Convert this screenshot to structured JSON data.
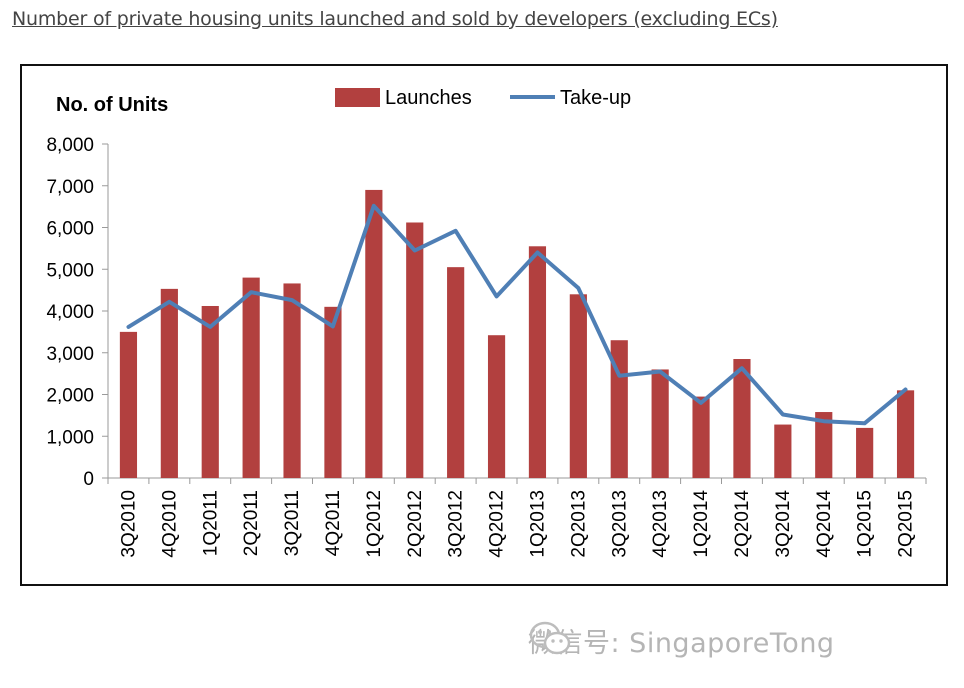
{
  "caption": "Number of private housing units launched and sold by developers (excluding ECs)",
  "watermark": "微信号: SingaporeTong",
  "chart_data": {
    "type": "bar+line",
    "title": "",
    "ylabel": "No. of Units",
    "xlabel": "",
    "ylim": [
      0,
      8000
    ],
    "yticks": [
      0,
      1000,
      2000,
      3000,
      4000,
      5000,
      6000,
      7000,
      8000
    ],
    "ytick_labels": [
      "0",
      "1,000",
      "2,000",
      "3,000",
      "4,000",
      "5,000",
      "6,000",
      "7,000",
      "8,000"
    ],
    "grid": false,
    "legend_position": "top-center",
    "categories": [
      "3Q2010",
      "4Q2010",
      "1Q2011",
      "2Q2011",
      "3Q2011",
      "4Q2011",
      "1Q2012",
      "2Q2012",
      "3Q2012",
      "4Q2012",
      "1Q2013",
      "2Q2013",
      "3Q2013",
      "4Q2013",
      "1Q2014",
      "2Q2014",
      "3Q2014",
      "4Q2014",
      "1Q2015",
      "2Q2015"
    ],
    "series": [
      {
        "name": "Launches",
        "type": "bar",
        "color": "#b2403f",
        "values": [
          3500,
          4530,
          4120,
          4800,
          4660,
          4100,
          6900,
          6120,
          5050,
          3420,
          5550,
          4400,
          3300,
          2600,
          1950,
          2850,
          1280,
          1580,
          1200,
          2100
        ]
      },
      {
        "name": "Take-up",
        "type": "line",
        "color": "#4f7fb5",
        "values": [
          3620,
          4220,
          3620,
          4450,
          4260,
          3630,
          6520,
          5450,
          5920,
          4350,
          5400,
          4550,
          2450,
          2550,
          1800,
          2630,
          1520,
          1360,
          1310,
          2120
        ]
      }
    ]
  }
}
